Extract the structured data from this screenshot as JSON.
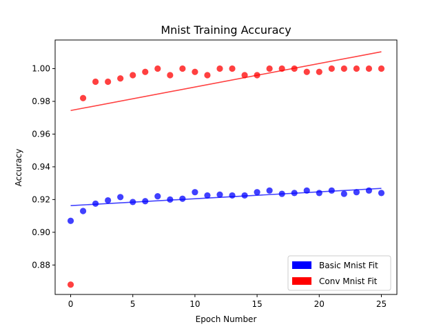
{
  "chart_data": {
    "type": "scatter",
    "title": "Mnist Training Accuracy",
    "xlabel": "Epoch Number",
    "ylabel": "Accuracy",
    "xlim": [
      -1.25,
      26.25
    ],
    "ylim": [
      0.862,
      1.0175
    ],
    "xticks": [
      0,
      5,
      10,
      15,
      20,
      25
    ],
    "xtick_labels": [
      "0",
      "5",
      "10",
      "15",
      "20",
      "25"
    ],
    "yticks": [
      0.88,
      0.9,
      0.92,
      0.94,
      0.96,
      0.98,
      1.0
    ],
    "ytick_labels": [
      "0.88",
      "0.90",
      "0.92",
      "0.94",
      "0.96",
      "0.98",
      "1.00"
    ],
    "grid": false,
    "legend_position": "lower-right",
    "series": [
      {
        "name": "Basic Mnist Fit",
        "color": "#0000ff",
        "x": [
          0,
          1,
          2,
          3,
          4,
          5,
          6,
          7,
          8,
          9,
          10,
          11,
          12,
          13,
          14,
          15,
          16,
          17,
          18,
          19,
          20,
          21,
          22,
          23,
          24,
          25
        ],
        "y": [
          0.907,
          0.913,
          0.9175,
          0.9195,
          0.9215,
          0.9185,
          0.919,
          0.922,
          0.92,
          0.9205,
          0.9245,
          0.9225,
          0.923,
          0.9225,
          0.9225,
          0.9245,
          0.9255,
          0.9235,
          0.924,
          0.9255,
          0.924,
          0.9255,
          0.9235,
          0.9245,
          0.9255,
          0.924
        ],
        "fit_line": {
          "x": [
            0,
            25
          ],
          "y": [
            0.9163,
            0.9268
          ]
        }
      },
      {
        "name": "Conv Mnist Fit",
        "color": "#ff0000",
        "x": [
          0,
          1,
          2,
          3,
          4,
          5,
          6,
          7,
          8,
          9,
          10,
          11,
          12,
          13,
          14,
          15,
          16,
          17,
          18,
          19,
          20,
          21,
          22,
          23,
          24,
          25
        ],
        "y": [
          0.868,
          0.982,
          0.992,
          0.992,
          0.994,
          0.996,
          0.998,
          1.0,
          0.996,
          1.0,
          0.998,
          0.996,
          1.0,
          1.0,
          0.996,
          0.996,
          1.0,
          1.0,
          1.0,
          0.998,
          0.998,
          1.0,
          1.0,
          1.0,
          1.0,
          1.0
        ],
        "fit_line": {
          "x": [
            0,
            25
          ],
          "y": [
            0.9744,
            1.0103
          ]
        }
      }
    ]
  }
}
